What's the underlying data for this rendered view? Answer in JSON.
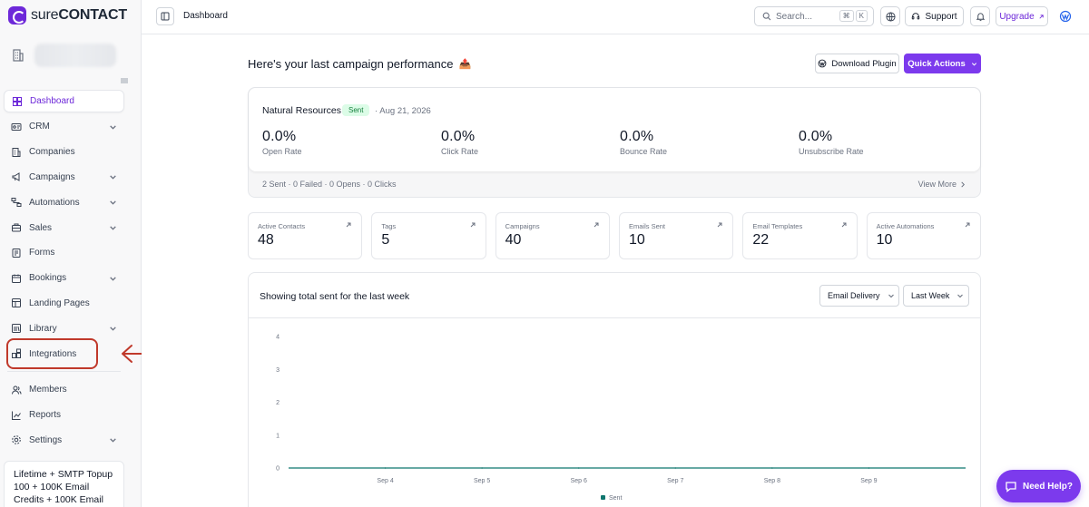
{
  "brand": {
    "prefix": "sure",
    "name": "CONTACT"
  },
  "sidebar": {
    "items": [
      {
        "label": "Dashboard",
        "icon": "grid-icon",
        "active": true,
        "chevron": false
      },
      {
        "label": "CRM",
        "icon": "id-card-icon",
        "chevron": true
      },
      {
        "label": "Companies",
        "icon": "building-icon",
        "chevron": false
      },
      {
        "label": "Campaigns",
        "icon": "megaphone-icon",
        "chevron": true
      },
      {
        "label": "Automations",
        "icon": "flow-icon",
        "chevron": true
      },
      {
        "label": "Sales",
        "icon": "briefcase-icon",
        "chevron": true
      },
      {
        "label": "Forms",
        "icon": "form-icon",
        "chevron": false
      },
      {
        "label": "Bookings",
        "icon": "calendar-icon",
        "chevron": true
      },
      {
        "label": "Landing Pages",
        "icon": "layout-icon",
        "chevron": false
      },
      {
        "label": "Library",
        "icon": "library-icon",
        "chevron": true
      },
      {
        "label": "Integrations",
        "icon": "plugs-icon",
        "chevron": false
      }
    ],
    "bottom_items": [
      {
        "label": "Members",
        "icon": "users-icon",
        "chevron": false
      },
      {
        "label": "Reports",
        "icon": "chart-line-icon",
        "chevron": false
      },
      {
        "label": "Settings",
        "icon": "gear-icon",
        "chevron": true
      }
    ],
    "promo": "Lifetime + SMTP Topup 100 + 100K Email Credits + 100K Email"
  },
  "topbar": {
    "title": "Dashboard",
    "search_placeholder": "Search...",
    "shortcut_mod": "⌘",
    "shortcut_key": "K",
    "support_label": "Support",
    "upgrade_label": "Upgrade"
  },
  "main": {
    "headline": "Here's your last campaign performance",
    "headline_emoji": "📤",
    "download_label": "Download Plugin",
    "quick_actions_label": "Quick Actions",
    "campaign": {
      "name": "Natural Resources",
      "status": "Sent",
      "date": "· Aug 21, 2026",
      "metrics": [
        {
          "value": "0.0%",
          "label": "Open Rate"
        },
        {
          "value": "0.0%",
          "label": "Click Rate"
        },
        {
          "value": "0.0%",
          "label": "Bounce Rate"
        },
        {
          "value": "0.0%",
          "label": "Unsubscribe Rate"
        }
      ],
      "summary": "2 Sent · 0 Failed · 0 Opens · 0 Clicks",
      "view_more": "View More"
    },
    "stats": [
      {
        "label": "Active Contacts",
        "value": "48"
      },
      {
        "label": "Tags",
        "value": "5"
      },
      {
        "label": "Campaigns",
        "value": "40"
      },
      {
        "label": "Emails Sent",
        "value": "10"
      },
      {
        "label": "Email Templates",
        "value": "22"
      },
      {
        "label": "Active Automations",
        "value": "10"
      }
    ],
    "chart_title": "Showing total sent for the last week",
    "filter_type": "Email Delivery",
    "filter_range": "Last Week"
  },
  "chart_data": {
    "type": "line",
    "title": "Showing total sent for the last week",
    "x": [
      "Sep 4",
      "Sep 5",
      "Sep 6",
      "Sep 7",
      "Sep 8",
      "Sep 9"
    ],
    "series": [
      {
        "name": "Sent",
        "values": [
          0,
          0,
          0,
          0,
          0,
          0
        ],
        "color": "#0f766e"
      }
    ],
    "yticks": [
      "0",
      "1",
      "2",
      "3",
      "4"
    ],
    "ylim": [
      0,
      4
    ],
    "legend": "bottom-center",
    "grid": false
  },
  "help_label": "Need Help?",
  "colors": {
    "accent": "#7c3aed",
    "annotation": "#c0392b",
    "series": "#0f766e"
  }
}
